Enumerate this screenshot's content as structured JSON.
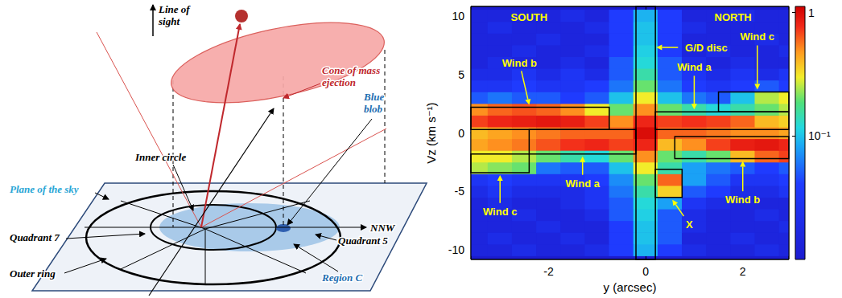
{
  "diagram": {
    "labels": [
      {
        "text": "Line of sight",
        "color": "#000000"
      },
      {
        "text": "Cone of mass ejection",
        "color": "#c0282d"
      },
      {
        "text": "Inner circle",
        "color": "#000000"
      },
      {
        "text": "Blue blob",
        "color": "#1f6fb2"
      },
      {
        "text": "Plane of the sky",
        "color": "#2aa6d6"
      },
      {
        "text": "Quadrant 7",
        "color": "#000000"
      },
      {
        "text": "Quadrant 5",
        "color": "#000000"
      },
      {
        "text": "Outer ring",
        "color": "#000000"
      },
      {
        "text": "NNW",
        "color": "#000000"
      },
      {
        "text": "Region C",
        "color": "#1f6fb2"
      }
    ]
  },
  "chart_data": {
    "type": "heatmap",
    "xlabel": "y (arcsec)",
    "ylabel": "Vz (km s⁻¹)",
    "xlim": [
      -3.6,
      2.95
    ],
    "xticks": [
      -2,
      0,
      2
    ],
    "ylim": [
      -10.8,
      10.8
    ],
    "yticks": [
      -10,
      -5,
      0,
      5,
      10
    ],
    "x": [
      -3.5,
      -3,
      -2.5,
      -2,
      -1.5,
      -1,
      -0.5,
      0,
      0.5,
      1,
      1.5,
      2,
      2.5,
      3
    ],
    "y": [
      -10,
      -9,
      -8,
      -7,
      -6,
      -5,
      -4,
      -3,
      -2,
      -1,
      0,
      1,
      2,
      3,
      4,
      5,
      6,
      7,
      8,
      9,
      10
    ],
    "cells": [
      [
        0.015,
        0.015,
        0.02,
        0.015,
        0.015,
        0.02,
        0.04,
        0.09,
        0.04,
        0.02,
        0.015,
        0.015,
        0.02,
        0.015
      ],
      [
        0.015,
        0.02,
        0.015,
        0.015,
        0.02,
        0.015,
        0.04,
        0.1,
        0.05,
        0.015,
        0.015,
        0.02,
        0.015,
        0.015
      ],
      [
        0.015,
        0.015,
        0.015,
        0.02,
        0.015,
        0.015,
        0.04,
        0.1,
        0.05,
        0.02,
        0.015,
        0.015,
        0.015,
        0.02
      ],
      [
        0.015,
        0.015,
        0.02,
        0.015,
        0.015,
        0.02,
        0.05,
        0.11,
        0.05,
        0.02,
        0.015,
        0.015,
        0.02,
        0.015
      ],
      [
        0.015,
        0.02,
        0.015,
        0.015,
        0.02,
        0.03,
        0.05,
        0.12,
        0.08,
        0.03,
        0.02,
        0.015,
        0.015,
        0.015
      ],
      [
        0.02,
        0.03,
        0.02,
        0.02,
        0.02,
        0.03,
        0.06,
        0.15,
        0.35,
        0.05,
        0.04,
        0.02,
        0.02,
        0.03
      ],
      [
        0.03,
        0.04,
        0.03,
        0.03,
        0.03,
        0.04,
        0.07,
        0.2,
        0.6,
        0.08,
        0.05,
        0.03,
        0.03,
        0.04
      ],
      [
        0.25,
        0.22,
        0.2,
        0.06,
        0.05,
        0.05,
        0.1,
        0.3,
        0.15,
        0.08,
        0.06,
        0.05,
        0.04,
        0.05
      ],
      [
        0.3,
        0.3,
        0.25,
        0.2,
        0.15,
        0.12,
        0.2,
        0.5,
        0.2,
        0.15,
        0.2,
        0.4,
        0.6,
        0.7
      ],
      [
        0.45,
        0.5,
        0.55,
        0.65,
        0.75,
        0.8,
        0.7,
        0.8,
        0.4,
        0.5,
        0.7,
        0.85,
        0.9,
        0.8
      ],
      [
        0.4,
        0.45,
        0.5,
        0.55,
        0.6,
        0.6,
        0.6,
        1.0,
        0.6,
        0.6,
        0.55,
        0.5,
        0.5,
        0.45
      ],
      [
        0.7,
        0.8,
        0.85,
        0.9,
        0.85,
        0.7,
        0.5,
        0.8,
        0.7,
        0.75,
        0.7,
        0.6,
        0.4,
        0.35
      ],
      [
        0.5,
        0.6,
        0.65,
        0.6,
        0.5,
        0.3,
        0.2,
        0.5,
        0.2,
        0.15,
        0.12,
        0.15,
        0.2,
        0.25
      ],
      [
        0.05,
        0.06,
        0.05,
        0.05,
        0.04,
        0.05,
        0.1,
        0.3,
        0.1,
        0.06,
        0.05,
        0.1,
        0.25,
        0.3
      ],
      [
        0.03,
        0.03,
        0.04,
        0.03,
        0.03,
        0.04,
        0.06,
        0.2,
        0.06,
        0.04,
        0.03,
        0.04,
        0.05,
        0.04
      ],
      [
        0.02,
        0.02,
        0.03,
        0.02,
        0.03,
        0.02,
        0.05,
        0.15,
        0.05,
        0.03,
        0.02,
        0.03,
        0.02,
        0.03
      ],
      [
        0.015,
        0.02,
        0.015,
        0.015,
        0.02,
        0.015,
        0.05,
        0.12,
        0.05,
        0.02,
        0.015,
        0.02,
        0.015,
        0.015
      ],
      [
        0.015,
        0.015,
        0.02,
        0.015,
        0.015,
        0.02,
        0.04,
        0.11,
        0.04,
        0.015,
        0.02,
        0.015,
        0.015,
        0.02
      ],
      [
        0.015,
        0.015,
        0.015,
        0.02,
        0.015,
        0.015,
        0.04,
        0.1,
        0.04,
        0.015,
        0.015,
        0.015,
        0.02,
        0.015
      ],
      [
        0.015,
        0.02,
        0.015,
        0.015,
        0.015,
        0.02,
        0.04,
        0.1,
        0.04,
        0.02,
        0.015,
        0.015,
        0.015,
        0.015
      ],
      [
        0.015,
        0.015,
        0.015,
        0.015,
        0.02,
        0.015,
        0.04,
        0.09,
        0.04,
        0.015,
        0.015,
        0.02,
        0.015,
        0.015
      ]
    ],
    "colorbar": {
      "range": [
        0.01,
        1.12
      ],
      "ticks": [
        1,
        {
          "value": 0.1,
          "label": "10⁻¹"
        }
      ]
    },
    "boxes": [
      {
        "x": [
          -3.6,
          -0.75
        ],
        "y": [
          0.3,
          2.2
        ]
      },
      {
        "x": [
          -2.4,
          -0.2
        ],
        "y": [
          -1.8,
          0.3
        ]
      },
      {
        "x": [
          -3.6,
          -2.4
        ],
        "y": [
          -3.4,
          -1.8
        ]
      },
      {
        "x": [
          -0.2,
          0.2
        ],
        "y": [
          -10.8,
          10.8
        ]
      },
      {
        "x": [
          0.2,
          2.95
        ],
        "y": [
          0.3,
          1.8
        ]
      },
      {
        "x": [
          1.5,
          2.95
        ],
        "y": [
          1.8,
          3.5
        ]
      },
      {
        "x": [
          0.6,
          2.95
        ],
        "y": [
          -2.2,
          -0.3
        ]
      },
      {
        "x": [
          0.2,
          0.75
        ],
        "y": [
          -5.5,
          -3.1
        ]
      }
    ],
    "annotations": [
      {
        "text": "SOUTH",
        "at": [
          -2.4,
          9.9
        ]
      },
      {
        "text": "NORTH",
        "at": [
          1.8,
          9.9
        ]
      },
      {
        "text": "G/D disc",
        "at": [
          1.25,
          7.3
        ],
        "target": [
          0.22,
          7.3
        ]
      },
      {
        "text": "Wind b",
        "at": [
          -2.6,
          6.0
        ],
        "target": [
          -2.4,
          2.4
        ]
      },
      {
        "text": "Wind a",
        "at": [
          -1.3,
          -4.3
        ],
        "target": [
          -1.3,
          -2.0
        ]
      },
      {
        "text": "Wind c",
        "at": [
          -3.0,
          -6.7
        ],
        "target": [
          -3.0,
          -3.6
        ]
      },
      {
        "text": "Wind a",
        "at": [
          1.0,
          5.6
        ],
        "target": [
          1.0,
          2.0
        ]
      },
      {
        "text": "Wind c",
        "at": [
          2.3,
          8.2
        ],
        "target": [
          2.3,
          3.7
        ]
      },
      {
        "text": "Wind b",
        "at": [
          2.0,
          -5.7
        ],
        "target": [
          2.0,
          -2.4
        ]
      },
      {
        "text": "X",
        "at": [
          0.9,
          -7.8
        ],
        "target": [
          0.55,
          -5.7
        ]
      }
    ]
  }
}
